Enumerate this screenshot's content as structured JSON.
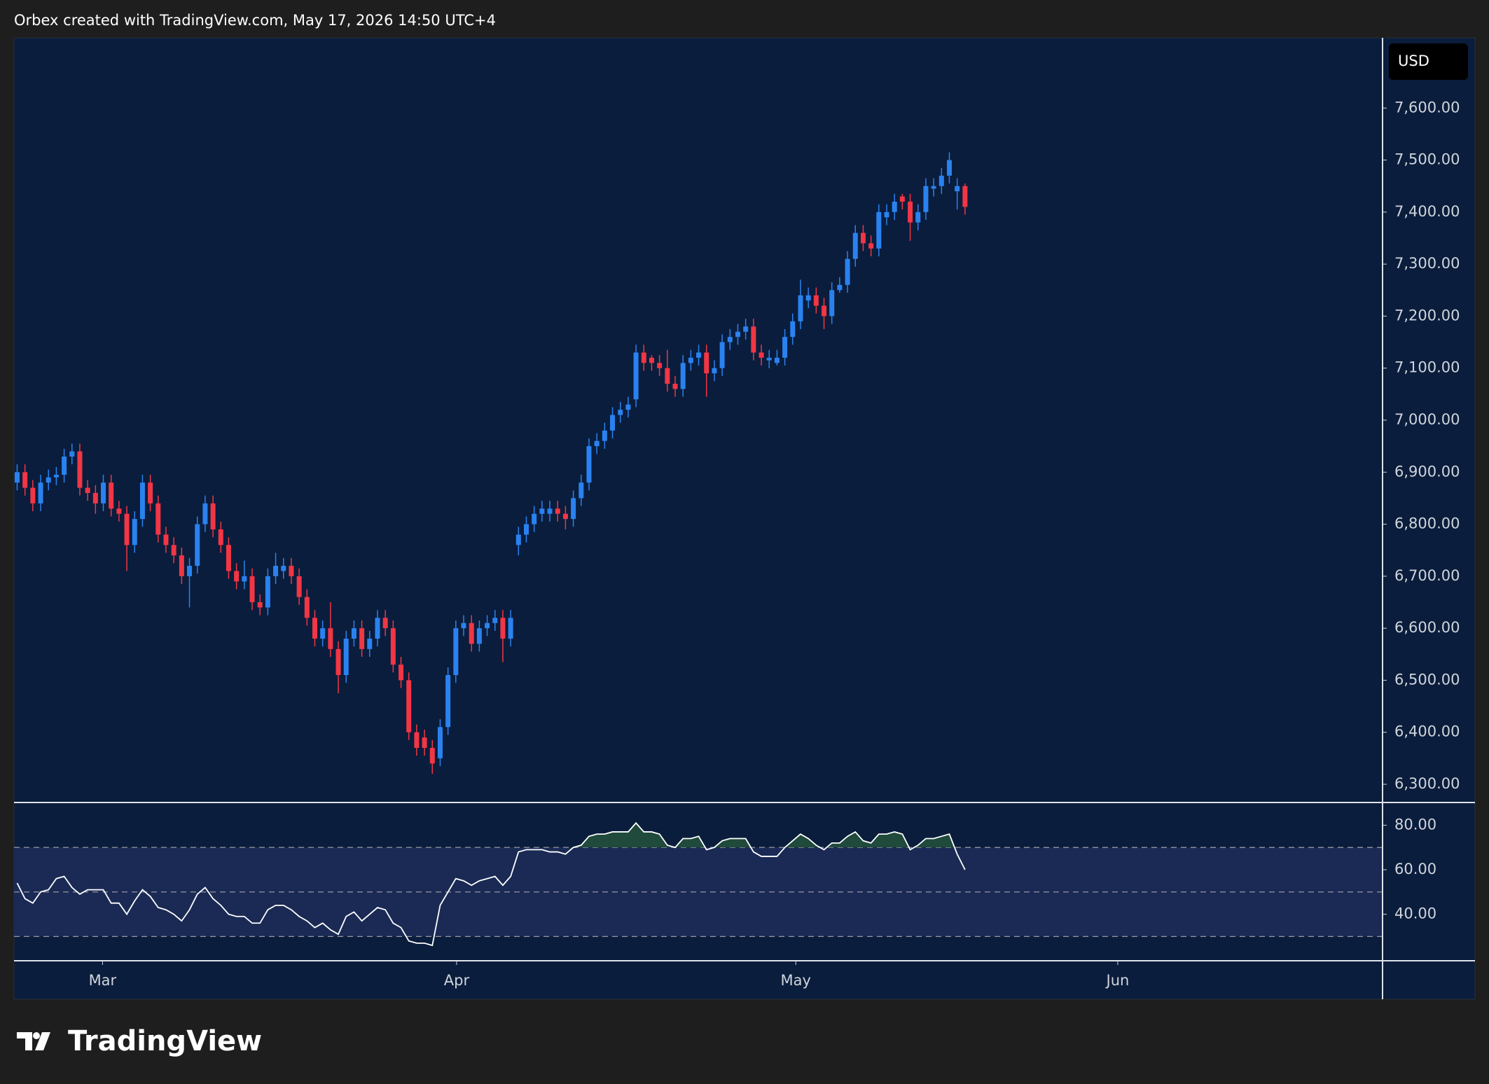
{
  "header": "Orbex created with TradingView.com, May 17, 2026 14:50 UTC+4",
  "currency": "USD",
  "brand": "TradingView",
  "chart_data": [
    {
      "type": "candlestick",
      "up_color": "#2a82f0",
      "down_color": "#f23645",
      "grid": false,
      "xlim": [
        -0.4,
        174.3
      ],
      "ylim": [
        6265,
        7735
      ],
      "yticks": [
        {
          "value": 6300,
          "label": "6,300.00"
        },
        {
          "value": 6400,
          "label": "6,400.00"
        },
        {
          "value": 6500,
          "label": "6,500.00"
        },
        {
          "value": 6600,
          "label": "6,600.00"
        },
        {
          "value": 6700,
          "label": "6,700.00"
        },
        {
          "value": 6800,
          "label": "6,800.00"
        },
        {
          "value": 6900,
          "label": "6,900.00"
        },
        {
          "value": 7000,
          "label": "7,000.00"
        },
        {
          "value": 7100,
          "label": "7,100.00"
        },
        {
          "value": 7200,
          "label": "7,200.00"
        },
        {
          "value": 7300,
          "label": "7,300.00"
        },
        {
          "value": 7400,
          "label": "7,400.00"
        },
        {
          "value": 7500,
          "label": "7,500.00"
        },
        {
          "value": 7600,
          "label": "7,600.00"
        }
      ],
      "open": [
        6880,
        6900,
        6870,
        6840,
        6880,
        6890,
        6895,
        6930,
        6940,
        6870,
        6860,
        6840,
        6880,
        6830,
        6820,
        6760,
        6810,
        6880,
        6840,
        6780,
        6760,
        6740,
        6700,
        6720,
        6800,
        6840,
        6790,
        6760,
        6710,
        6690,
        6700,
        6650,
        6640,
        6700,
        6710,
        6720,
        6700,
        6660,
        6620,
        6580,
        6600,
        6560,
        6510,
        6580,
        6600,
        6560,
        6580,
        6620,
        6600,
        6530,
        6500,
        6400,
        6390,
        6370,
        6350,
        6410,
        6510,
        6600,
        6610,
        6570,
        6600,
        6610,
        6620,
        6580,
        6760,
        6780,
        6800,
        6820,
        6820,
        6830,
        6820,
        6810,
        6850,
        6880,
        6950,
        6960,
        6980,
        7010,
        7020,
        7040,
        7130,
        7120,
        7110,
        7100,
        7070,
        7060,
        7110,
        7120,
        7130,
        7090,
        7100,
        7150,
        7160,
        7170,
        7180,
        7130,
        7115,
        7110,
        7120,
        7160,
        7190,
        7230,
        7240,
        7220,
        7200,
        7250,
        7260,
        7310,
        7360,
        7340,
        7330,
        7390,
        7400,
        7430,
        7420,
        7380,
        7400,
        7445,
        7450,
        7470,
        7440,
        7450
      ],
      "high": [
        6915,
        6915,
        6885,
        6895,
        6905,
        6910,
        6945,
        6955,
        6955,
        6885,
        6875,
        6895,
        6895,
        6845,
        6835,
        6825,
        6895,
        6895,
        6855,
        6795,
        6775,
        6755,
        6735,
        6815,
        6855,
        6855,
        6805,
        6775,
        6725,
        6730,
        6715,
        6665,
        6715,
        6745,
        6735,
        6735,
        6715,
        6675,
        6635,
        6615,
        6650,
        6575,
        6595,
        6615,
        6615,
        6595,
        6635,
        6635,
        6615,
        6545,
        6515,
        6415,
        6405,
        6385,
        6425,
        6525,
        6615,
        6625,
        6625,
        6615,
        6625,
        6635,
        6635,
        6635,
        6795,
        6815,
        6835,
        6845,
        6845,
        6845,
        6835,
        6865,
        6895,
        6965,
        6975,
        6995,
        7025,
        7035,
        7045,
        7145,
        7145,
        7125,
        7125,
        7135,
        7085,
        7125,
        7135,
        7145,
        7145,
        7115,
        7165,
        7175,
        7185,
        7195,
        7195,
        7145,
        7135,
        7135,
        7175,
        7205,
        7270,
        7255,
        7255,
        7235,
        7265,
        7275,
        7325,
        7375,
        7375,
        7355,
        7415,
        7415,
        7435,
        7435,
        7435,
        7415,
        7465,
        7465,
        7485,
        7515,
        7465,
        7455
      ],
      "low": [
        6865,
        6855,
        6825,
        6825,
        6865,
        6875,
        6880,
        6915,
        6855,
        6845,
        6820,
        6825,
        6815,
        6805,
        6710,
        6745,
        6795,
        6825,
        6765,
        6745,
        6725,
        6685,
        6640,
        6705,
        6785,
        6775,
        6745,
        6695,
        6675,
        6675,
        6635,
        6625,
        6625,
        6685,
        6695,
        6685,
        6645,
        6605,
        6565,
        6565,
        6545,
        6475,
        6495,
        6565,
        6545,
        6545,
        6565,
        6585,
        6515,
        6485,
        6385,
        6355,
        6355,
        6320,
        6335,
        6395,
        6495,
        6585,
        6555,
        6555,
        6585,
        6595,
        6535,
        6565,
        6740,
        6765,
        6785,
        6805,
        6805,
        6805,
        6790,
        6795,
        6835,
        6865,
        6935,
        6945,
        6965,
        6995,
        7005,
        7025,
        7095,
        7095,
        7085,
        7055,
        7045,
        7045,
        7095,
        7105,
        7045,
        7075,
        7085,
        7135,
        7145,
        7155,
        7115,
        7105,
        7100,
        7105,
        7105,
        7145,
        7175,
        7215,
        7205,
        7175,
        7185,
        7245,
        7245,
        7295,
        7325,
        7315,
        7315,
        7375,
        7385,
        7405,
        7345,
        7365,
        7385,
        7430,
        7435,
        7455,
        7405,
        7395
      ],
      "close": [
        6900,
        6870,
        6840,
        6880,
        6890,
        6895,
        6930,
        6940,
        6870,
        6860,
        6840,
        6880,
        6830,
        6820,
        6760,
        6810,
        6880,
        6840,
        6780,
        6760,
        6740,
        6700,
        6720,
        6800,
        6840,
        6790,
        6760,
        6710,
        6690,
        6700,
        6650,
        6640,
        6700,
        6720,
        6720,
        6700,
        6660,
        6620,
        6580,
        6600,
        6560,
        6510,
        6580,
        6600,
        6560,
        6580,
        6620,
        6600,
        6530,
        6500,
        6400,
        6370,
        6370,
        6340,
        6410,
        6510,
        6600,
        6610,
        6570,
        6600,
        6610,
        6620,
        6580,
        6620,
        6780,
        6800,
        6820,
        6830,
        6830,
        6820,
        6810,
        6850,
        6880,
        6950,
        6960,
        6980,
        7010,
        7020,
        7030,
        7130,
        7110,
        7110,
        7100,
        7070,
        7060,
        7110,
        7120,
        7130,
        7090,
        7100,
        7150,
        7160,
        7170,
        7180,
        7130,
        7120,
        7120,
        7120,
        7160,
        7190,
        7240,
        7240,
        7220,
        7200,
        7250,
        7260,
        7310,
        7360,
        7340,
        7330,
        7400,
        7400,
        7420,
        7420,
        7380,
        7400,
        7450,
        7450,
        7470,
        7500,
        7450,
        7410
      ]
    },
    {
      "type": "line",
      "color": "#ffffff",
      "fill_color": "#1f4a3c",
      "band_color": "#1a2a55",
      "xlim": [
        -0.4,
        174.3
      ],
      "ylim": [
        19.1,
        90.2
      ],
      "band": [
        30,
        70
      ],
      "levels": [
        70,
        50,
        30
      ],
      "yticks": [
        {
          "value": 40,
          "label": "40.00"
        },
        {
          "value": 60,
          "label": "60.00"
        },
        {
          "value": 80,
          "label": "80.00"
        }
      ],
      "xticks": [
        {
          "value": 10.9,
          "label": "Mar"
        },
        {
          "value": 56.1,
          "label": "Apr"
        },
        {
          "value": 99.4,
          "label": "May"
        },
        {
          "value": 140.5,
          "label": "Jun"
        }
      ],
      "values": [
        54,
        47,
        45,
        50,
        51,
        56,
        57,
        52,
        49,
        51,
        51,
        51,
        45,
        45,
        40,
        46,
        51,
        48,
        43,
        42,
        40,
        37,
        42,
        49,
        52,
        47,
        44,
        40,
        39,
        39,
        36,
        36,
        42,
        44,
        44,
        42,
        39,
        37,
        34,
        36,
        33,
        31,
        39,
        41,
        37,
        40,
        43,
        42,
        36,
        34,
        28,
        27,
        27,
        26,
        44,
        50,
        56,
        55,
        53,
        55,
        56,
        57,
        53,
        57,
        68,
        69,
        69,
        69,
        68,
        68,
        67,
        70,
        71,
        75,
        76,
        76,
        77,
        77,
        77,
        81,
        77,
        77,
        76,
        71,
        70,
        74,
        74,
        75,
        69,
        70,
        73,
        74,
        74,
        74,
        68,
        66,
        66,
        66,
        70,
        73,
        76,
        74,
        71,
        69,
        72,
        72,
        75,
        77,
        73,
        72,
        76,
        76,
        77,
        76,
        69,
        71,
        74,
        74,
        75,
        76,
        67,
        60
      ]
    }
  ]
}
